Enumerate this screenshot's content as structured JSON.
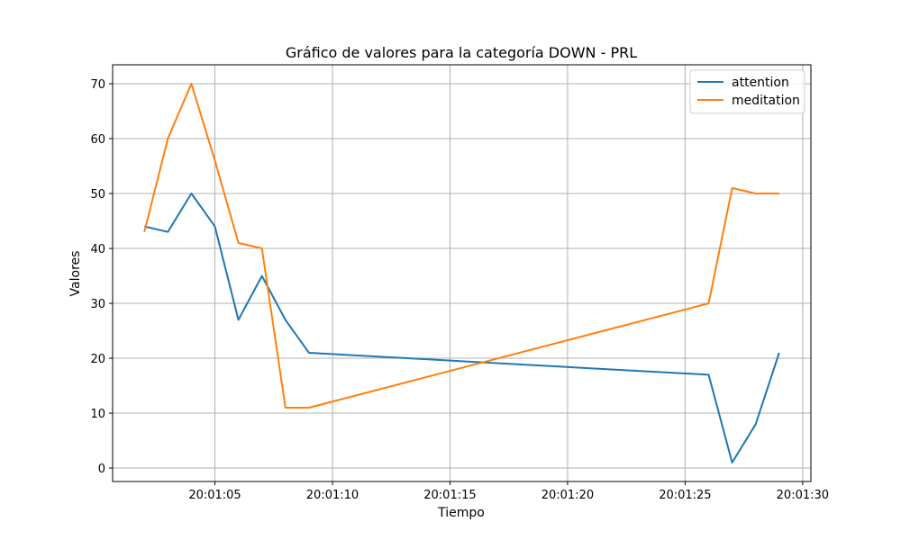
{
  "chart_data": {
    "type": "line",
    "title": "Gráfico de valores para la categoría DOWN - PRL",
    "xlabel": "Tiempo",
    "ylabel": "Valores",
    "x": [
      "20:01:02",
      "20:01:03",
      "20:01:04",
      "20:01:05",
      "20:01:06",
      "20:01:07",
      "20:01:08",
      "20:01:09",
      "20:01:26",
      "20:01:27",
      "20:01:28",
      "20:01:29"
    ],
    "x_ticks": [
      "20:01:05",
      "20:01:10",
      "20:01:15",
      "20:01:20",
      "20:01:25",
      "20:01:30"
    ],
    "y_ticks": [
      0,
      10,
      20,
      30,
      40,
      50,
      60,
      70
    ],
    "xlim": [
      "20:01:00.65",
      "20:01:30.35"
    ],
    "ylim": [
      -2.45,
      73.45
    ],
    "grid": true,
    "legend": "top-right",
    "series": [
      {
        "name": "attention",
        "color": "#1f77b4",
        "values": [
          44,
          43,
          50,
          44,
          27,
          35,
          27,
          21,
          17,
          1,
          8,
          21
        ]
      },
      {
        "name": "meditation",
        "color": "#ff7f0e",
        "values": [
          43,
          60,
          70,
          56,
          41,
          40,
          11,
          11,
          30,
          51,
          50,
          50
        ]
      }
    ]
  }
}
